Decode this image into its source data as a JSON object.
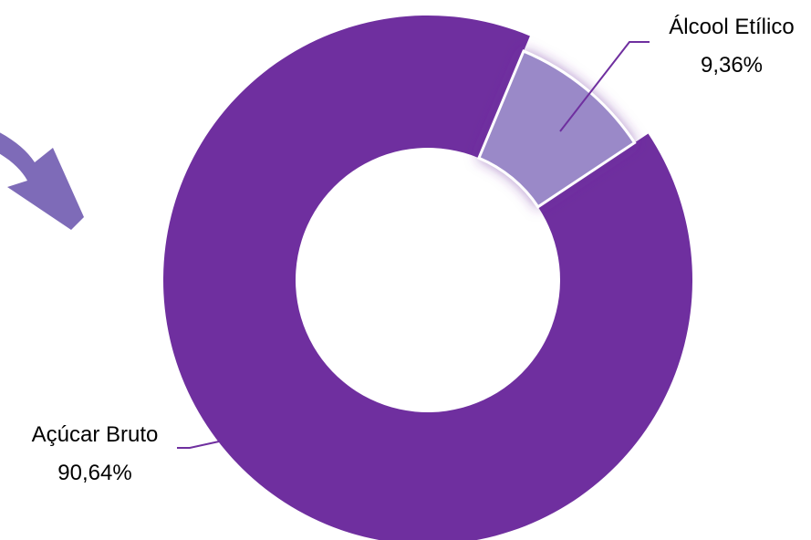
{
  "colors": {
    "dominant_slice": "#6f2f9f",
    "minor_slice": "#9a89c8",
    "arrow": "#7e6bb8",
    "leader_line": "#6f2f9f"
  },
  "arrow_icon": "curved-arrow-icon",
  "chart_data": {
    "type": "pie",
    "variant": "donut",
    "slices": [
      {
        "name": "Álcool Etílico",
        "value": 9.36,
        "value_label": "9,36%",
        "highlighted": true
      },
      {
        "name": "Açúcar Bruto",
        "value": 90.64,
        "value_label": "90,64%",
        "highlighted": false
      }
    ],
    "legend": "none"
  }
}
